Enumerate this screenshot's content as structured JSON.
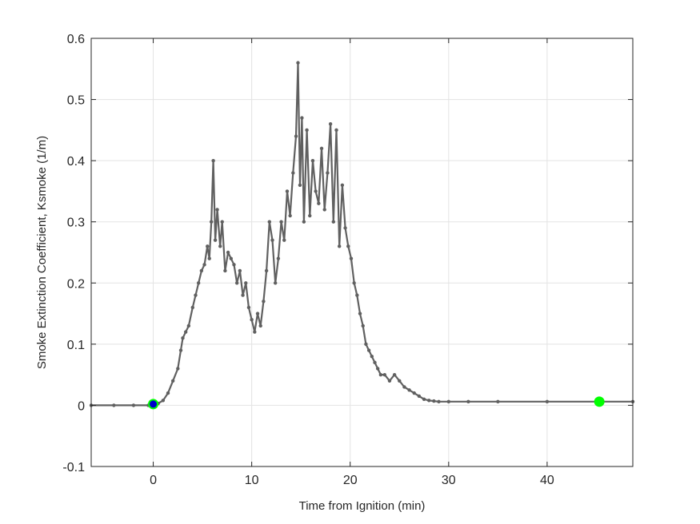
{
  "chart_data": {
    "type": "line",
    "xlabel": "Time from Ignition (min)",
    "ylabel": "Smoke Extinction Coefficient, Ksmoke (1/m)",
    "xlim": [
      -6.3,
      48.7
    ],
    "ylim": [
      -0.1,
      0.6
    ],
    "xticks": [
      0,
      10,
      20,
      30,
      40
    ],
    "yticks": [
      -0.1,
      0,
      0.1,
      0.2,
      0.3,
      0.4,
      0.5,
      0.6
    ],
    "xtick_labels": [
      "0",
      "10",
      "20",
      "30",
      "40"
    ],
    "ytick_labels": [
      "-0.1",
      "0",
      "0.1",
      "0.2",
      "0.3",
      "0.4",
      "0.5",
      "0.6"
    ],
    "grid": true,
    "series": [
      {
        "color": "#606060",
        "marker": "dot",
        "x": [
          -6.3,
          -4,
          -2,
          -0.5,
          0,
          0.5,
          1,
          1.5,
          2,
          2.5,
          2.8,
          3,
          3.3,
          3.6,
          4,
          4.3,
          4.6,
          4.9,
          5.2,
          5.5,
          5.7,
          5.9,
          6.1,
          6.3,
          6.5,
          6.8,
          7,
          7.3,
          7.6,
          7.9,
          8.2,
          8.5,
          8.8,
          9.1,
          9.4,
          9.7,
          10,
          10.3,
          10.6,
          10.9,
          11.2,
          11.5,
          11.8,
          12.1,
          12.4,
          12.7,
          13,
          13.3,
          13.6,
          13.9,
          14.2,
          14.5,
          14.7,
          14.9,
          15.1,
          15.3,
          15.6,
          15.9,
          16.2,
          16.5,
          16.8,
          17.1,
          17.4,
          17.7,
          18,
          18.3,
          18.6,
          18.9,
          19.2,
          19.5,
          19.8,
          20.1,
          20.4,
          20.7,
          21,
          21.3,
          21.6,
          21.9,
          22.2,
          22.5,
          22.8,
          23.1,
          23.5,
          24,
          24.5,
          25,
          25.5,
          26,
          26.5,
          27,
          27.5,
          28,
          28.5,
          29,
          30,
          32,
          35,
          40,
          45,
          48.7
        ],
        "y": [
          0,
          0,
          0,
          0,
          0,
          0.003,
          0.008,
          0.02,
          0.04,
          0.06,
          0.09,
          0.11,
          0.12,
          0.13,
          0.16,
          0.18,
          0.2,
          0.22,
          0.23,
          0.26,
          0.24,
          0.3,
          0.4,
          0.27,
          0.32,
          0.26,
          0.3,
          0.22,
          0.25,
          0.24,
          0.23,
          0.2,
          0.22,
          0.18,
          0.2,
          0.16,
          0.14,
          0.12,
          0.15,
          0.13,
          0.17,
          0.22,
          0.3,
          0.27,
          0.2,
          0.24,
          0.3,
          0.27,
          0.35,
          0.31,
          0.38,
          0.44,
          0.56,
          0.36,
          0.47,
          0.3,
          0.45,
          0.31,
          0.4,
          0.35,
          0.33,
          0.42,
          0.32,
          0.38,
          0.46,
          0.3,
          0.45,
          0.26,
          0.36,
          0.29,
          0.26,
          0.24,
          0.2,
          0.18,
          0.15,
          0.13,
          0.1,
          0.09,
          0.08,
          0.07,
          0.06,
          0.05,
          0.05,
          0.04,
          0.05,
          0.04,
          0.03,
          0.025,
          0.02,
          0.015,
          0.01,
          0.008,
          0.007,
          0.006,
          0.006,
          0.006,
          0.006,
          0.006,
          0.006,
          0.006
        ]
      }
    ],
    "markers": [
      {
        "x": 0,
        "y": 0.002,
        "color": "#00ff00"
      },
      {
        "x": 0,
        "y": 0.002,
        "color": "#0000cd"
      },
      {
        "x": 45.3,
        "y": 0.006,
        "color": "#0000cd"
      },
      {
        "x": 45.3,
        "y": 0.006,
        "color": "#00ff00"
      }
    ]
  }
}
